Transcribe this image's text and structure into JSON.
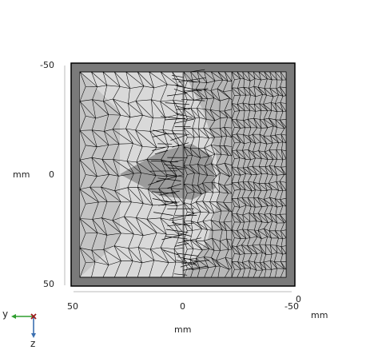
{
  "axes": {
    "vertical_ticks": [
      "-50",
      "0",
      "50"
    ],
    "vertical_unit": "mm",
    "horizontal_ticks": [
      "50",
      "0",
      "-50"
    ],
    "horizontal_unit": "mm",
    "corner_tick": "0",
    "corner_unit": "mm"
  },
  "triad": {
    "y_label": "y",
    "z_label": "z",
    "y_color": "#2e9e2e",
    "z_color": "#3a6fb0",
    "x_color": "#9b1c1c"
  },
  "colors": {
    "background": "#ffffff",
    "frame": "#7a7a7a",
    "surface_light": "#d9d9d9",
    "surface_mid": "#bdbdbd",
    "surface_dark": "#8f8f8f",
    "mesh_line": "#000000"
  }
}
